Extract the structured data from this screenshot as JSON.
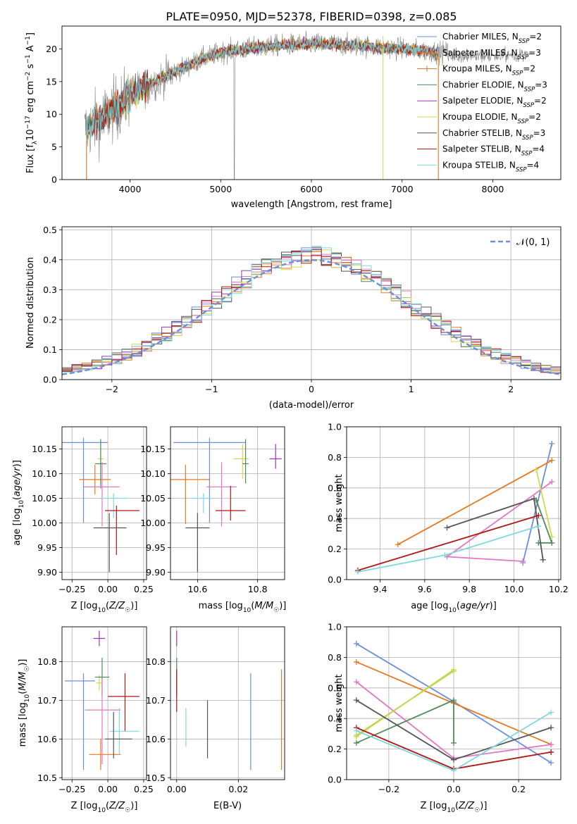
{
  "figure_title": "PLATE=0950, MJD=52378, FIBERID=0398, z=0.085",
  "colors": {
    "chabrier_miles": "#6b8fdc",
    "salpeter_miles": "#e8781e",
    "kroupa_miles": "#c97a2a",
    "chabrier_elodie": "#4f8a5a",
    "salpeter_elodie": "#9b36b8",
    "kroupa_elodie": "#d4d94a",
    "chabrier_stelib": "#555555",
    "salpeter_stelib": "#b31414",
    "kroupa_stelib": "#7fd8dc",
    "data_spectrum": "#808080",
    "pink": "#e377c2",
    "lime": "#bcd64f",
    "grid": "#b0b0b0"
  },
  "chart_data": [
    {
      "id": "spectrum",
      "type": "line",
      "title": "PLATE=0950, MJD=52378, FIBERID=0398, z=0.085",
      "xlabel": "wavelength [Angstrom, rest frame]",
      "ylabel": "Flux [f$_\\lambda$10$^{-17}$ erg cm$^{-2}$ s$^{-1}$ A$^{-1}$]",
      "xlim": [
        3250,
        8750
      ],
      "ylim": [
        0,
        23.5
      ],
      "xticks": [
        4000,
        5000,
        6000,
        7000,
        8000
      ],
      "yticks": [
        0,
        5,
        10,
        15,
        20
      ],
      "grid": false,
      "legend_position": "top-right",
      "legend": [
        {
          "label": "Chabrier MILES, N",
          "sub": "SSP",
          "tail": "=2"
        },
        {
          "label": "Salpeter MILES, N",
          "sub": "SSP",
          "tail": "=3"
        },
        {
          "label": "Kroupa MILES, N",
          "sub": "SSP",
          "tail": "=2"
        },
        {
          "label": "Chabrier ELODIE, N",
          "sub": "SSP",
          "tail": "=3"
        },
        {
          "label": "Salpeter ELODIE, N",
          "sub": "SSP",
          "tail": "=2"
        },
        {
          "label": "Kroupa ELODIE, N",
          "sub": "SSP",
          "tail": "=2"
        },
        {
          "label": "Chabrier STELIB, N",
          "sub": "SSP",
          "tail": "=3"
        },
        {
          "label": "Salpeter STELIB, N",
          "sub": "SSP",
          "tail": "=4"
        },
        {
          "label": "Kroupa STELIB, N",
          "sub": "SSP",
          "tail": "=4"
        }
      ],
      "continuum_anchor_points": [
        [
          3500,
          7.5
        ],
        [
          3700,
          9.5
        ],
        [
          3900,
          11.5
        ],
        [
          4000,
          13
        ],
        [
          4200,
          14.5
        ],
        [
          4500,
          16.5
        ],
        [
          4800,
          18.5
        ],
        [
          5000,
          19.5
        ],
        [
          5300,
          20
        ],
        [
          5600,
          20.5
        ],
        [
          6000,
          20.8
        ],
        [
          6500,
          20.5
        ],
        [
          7000,
          20
        ],
        [
          7400,
          19.5
        ]
      ],
      "model_end_wavelength": 7400,
      "data_end_wavelength": 8400
    },
    {
      "id": "residuals",
      "type": "line",
      "xlabel": "(data-model)/error",
      "ylabel": "Normed distribution",
      "xlim": [
        -2.5,
        2.5
      ],
      "ylim": [
        0,
        0.51
      ],
      "xticks": [
        -2,
        -1,
        0,
        1,
        2
      ],
      "yticks": [
        0.0,
        0.1,
        0.2,
        0.3,
        0.4,
        0.5
      ],
      "grid": true,
      "legend_position": "top-right",
      "reference_curve": {
        "label": "N(0,1)",
        "mean": 0,
        "sigma": 1,
        "style": "dashed"
      },
      "histogram_bin_width": 0.1
    },
    {
      "id": "age_vs_Z",
      "type": "scatter",
      "xlabel": "Z [log10(Z/Z☉)]",
      "ylabel": "age [log10(age/yr)]",
      "xlim": [
        -0.32,
        0.27
      ],
      "ylim": [
        9.885,
        10.195
      ],
      "xticks": [
        -0.25,
        0.0,
        0.25
      ],
      "yticks": [
        9.9,
        9.95,
        10.0,
        10.05,
        10.1,
        10.15
      ],
      "grid": true,
      "points": [
        {
          "color": "chabrier_miles",
          "x": -0.17,
          "xerr": [
            0.17,
            0.17
          ],
          "y": 10.163,
          "yerr": [
            0.163,
            0.01
          ]
        },
        {
          "color": "salpeter_miles",
          "x": -0.09,
          "xerr": [
            0.11,
            0.11
          ],
          "y": 10.088,
          "yerr": [
            0.03,
            0.03
          ]
        },
        {
          "color": "kroupa_elodie",
          "x": -0.05,
          "xerr": [
            0.02,
            0.02
          ],
          "y": 10.13,
          "yerr": [
            0.05,
            0.02
          ]
        },
        {
          "color": "chabrier_elodie",
          "x": -0.05,
          "xerr": [
            0.04,
            0.04
          ],
          "y": 10.12,
          "yerr": [
            0.05,
            0.05
          ]
        },
        {
          "color": "pink",
          "x": -0.04,
          "xerr": [
            0.13,
            0.12
          ],
          "y": 10.073,
          "yerr": [
            0.08,
            0.05
          ]
        },
        {
          "color": "kroupa_stelib",
          "x": 0.04,
          "xerr": [
            0.1,
            0.1
          ],
          "y": 10.05,
          "yerr": [
            0.04,
            0.01
          ]
        },
        {
          "color": "salpeter_stelib",
          "x": 0.06,
          "xerr": [
            0.08,
            0.16
          ],
          "y": 10.025,
          "yerr": [
            0.09,
            0.01
          ]
        },
        {
          "color": "chabrier_stelib",
          "x": 0.01,
          "xerr": [
            0.11,
            0.12
          ],
          "y": 9.99,
          "yerr": [
            0.09,
            0.03
          ]
        }
      ]
    },
    {
      "id": "age_vs_mass",
      "type": "scatter",
      "xlabel": "mass [log10(M/M☉)]",
      "ylabel": "",
      "xlim": [
        10.51,
        10.89
      ],
      "ylim": [
        9.885,
        10.195
      ],
      "xticks": [
        10.6,
        10.8
      ],
      "yticks": [
        9.9,
        9.95,
        10.0,
        10.05,
        10.1,
        10.15
      ],
      "grid": true,
      "points": [
        {
          "color": "chabrier_miles",
          "x": 10.64,
          "xerr": [
            0.12,
            0.12
          ],
          "y": 10.163,
          "yerr": [
            0.163,
            0.01
          ]
        },
        {
          "color": "salpeter_miles",
          "x": 10.56,
          "xerr": [
            0.08,
            0.08
          ],
          "y": 10.088,
          "yerr": [
            0.09,
            0.03
          ]
        },
        {
          "color": "kroupa_elodie",
          "x": 10.75,
          "xerr": [
            0.03,
            0.02
          ],
          "y": 10.13,
          "yerr": [
            0.04,
            0.03
          ]
        },
        {
          "color": "chabrier_elodie",
          "x": 10.76,
          "xerr": [
            0.01,
            0.01
          ],
          "y": 10.12,
          "yerr": [
            0.04,
            0.05
          ]
        },
        {
          "color": "salpeter_elodie",
          "x": 10.86,
          "xerr": [
            0.02,
            0.02
          ],
          "y": 10.13,
          "yerr": [
            0.02,
            0.03
          ]
        },
        {
          "color": "pink",
          "x": 10.68,
          "xerr": [
            0.05,
            0.05
          ],
          "y": 10.073,
          "yerr": [
            0.08,
            0.05
          ]
        },
        {
          "color": "kroupa_stelib",
          "x": 10.62,
          "xerr": [
            0.04,
            0.03
          ],
          "y": 10.05,
          "yerr": [
            0.03,
            0.01
          ]
        },
        {
          "color": "salpeter_stelib",
          "x": 10.71,
          "xerr": [
            0.05,
            0.05
          ],
          "y": 10.025,
          "yerr": [
            0.02,
            0.05
          ]
        },
        {
          "color": "chabrier_stelib",
          "x": 10.6,
          "xerr": [
            0.04,
            0.04
          ],
          "y": 9.99,
          "yerr": [
            0.09,
            0.03
          ]
        }
      ]
    },
    {
      "id": "massweight_vs_age",
      "type": "line",
      "xlabel": "age [log10(age/yr)]",
      "ylabel": "mass weight",
      "xlim": [
        9.25,
        10.21
      ],
      "ylim": [
        0,
        1.0
      ],
      "xticks": [
        9.4,
        9.6,
        9.8,
        10.0,
        10.2
      ],
      "yticks": [
        0.0,
        0.2,
        0.4,
        0.6,
        0.8,
        1.0
      ],
      "grid": true,
      "series": [
        {
          "color": "chabrier_miles",
          "x": [
            10.04,
            10.17
          ],
          "y": [
            0.11,
            0.89
          ]
        },
        {
          "color": "salpeter_miles",
          "x": [
            9.48,
            10.17
          ],
          "y": [
            0.23,
            0.78
          ]
        },
        {
          "color": "pink",
          "x": [
            10.04,
            9.7,
            10.17
          ],
          "y": [
            0.12,
            0.15,
            0.64
          ]
        },
        {
          "color": "kroupa_elodie",
          "x": [
            10.1,
            10.17
          ],
          "y": [
            0.72,
            0.28
          ]
        },
        {
          "color": "chabrier_elodie",
          "x": [
            10.1,
            10.17,
            10.11
          ],
          "y": [
            0.52,
            0.24,
            0.24
          ]
        },
        {
          "color": "chabrier_stelib",
          "x": [
            9.7,
            10.09,
            10.13
          ],
          "y": [
            0.34,
            0.53,
            0.13
          ]
        },
        {
          "color": "salpeter_stelib",
          "x": [
            9.3,
            10.11
          ],
          "y": [
            0.06,
            0.42
          ]
        },
        {
          "color": "kroupa_stelib",
          "x": [
            9.3,
            9.69,
            10.11
          ],
          "y": [
            0.05,
            0.16,
            0.35
          ]
        }
      ]
    },
    {
      "id": "mass_vs_Z",
      "type": "scatter",
      "xlabel": "Z [log10(Z/Z☉)]",
      "ylabel": "mass [log10(M/M☉)]",
      "xlim": [
        -0.32,
        0.27
      ],
      "ylim": [
        10.495,
        10.89
      ],
      "xticks": [
        -0.25,
        0.0,
        0.25
      ],
      "yticks": [
        10.5,
        10.6,
        10.7,
        10.8
      ],
      "grid": true,
      "points": [
        {
          "color": "chabrier_miles",
          "x": -0.17,
          "xerr": [
            0.13,
            0.08
          ],
          "y": 10.75,
          "yerr": [
            0.23,
            0.02
          ]
        },
        {
          "color": "salpeter_miles",
          "x": -0.05,
          "xerr": [
            0.08,
            0.14
          ],
          "y": 10.56,
          "yerr": [
            0.04,
            0.04
          ]
        },
        {
          "color": "salpeter_elodie",
          "x": -0.06,
          "xerr": [
            0.04,
            0.04
          ],
          "y": 10.86,
          "yerr": [
            0.02,
            0.02
          ]
        },
        {
          "color": "kroupa_elodie",
          "x": -0.06,
          "xerr": [
            0.02,
            0.02
          ],
          "y": 10.745,
          "yerr": [
            0.02,
            0.02
          ]
        },
        {
          "color": "chabrier_elodie",
          "x": -0.04,
          "xerr": [
            0.05,
            0.05
          ],
          "y": 10.76,
          "yerr": [
            0.05,
            0.05
          ]
        },
        {
          "color": "pink",
          "x": -0.04,
          "xerr": [
            0.12,
            0.13
          ],
          "y": 10.675,
          "yerr": [
            0.14,
            0.08
          ]
        },
        {
          "color": "salpeter_stelib",
          "x": 0.12,
          "xerr": [
            0.12,
            0.1
          ],
          "y": 10.71,
          "yerr": [
            0.09,
            0.06
          ]
        },
        {
          "color": "kroupa_stelib",
          "x": 0.08,
          "xerr": [
            0.07,
            0.14
          ],
          "y": 10.62,
          "yerr": [
            0.06,
            0.06
          ]
        },
        {
          "color": "chabrier_stelib",
          "x": 0.04,
          "xerr": [
            0.06,
            0.13
          ],
          "y": 10.6,
          "yerr": [
            0.05,
            0.07
          ]
        }
      ]
    },
    {
      "id": "mass_vs_EBV",
      "type": "scatter",
      "xlabel": "E(B-V)",
      "ylabel": "",
      "xlim": [
        -0.002,
        0.035
      ],
      "ylim": [
        10.495,
        10.89
      ],
      "xticks": [
        0.0,
        0.02
      ],
      "yticks": [
        10.5,
        10.6,
        10.7,
        10.8
      ],
      "grid": true,
      "points": [
        {
          "color": "salpeter_elodie",
          "x": 0.0,
          "y": 10.86,
          "yerr": [
            0.02,
            0.02
          ]
        },
        {
          "color": "chabrier_elodie",
          "x": 0.0,
          "y": 10.76,
          "yerr": [
            0.05,
            0.05
          ]
        },
        {
          "color": "salpeter_stelib",
          "x": 0.0,
          "y": 10.72,
          "yerr": [
            0.05,
            0.06
          ]
        },
        {
          "color": "kroupa_stelib",
          "x": 0.003,
          "y": 10.63,
          "yerr": [
            0.05,
            0.05
          ]
        },
        {
          "color": "chabrier_stelib",
          "x": 0.01,
          "y": 10.625,
          "yerr": [
            0.075,
            0.075
          ]
        },
        {
          "color": "chabrier_miles",
          "x": 0.024,
          "y": 10.645,
          "yerr": [
            0.125,
            0.125
          ]
        },
        {
          "color": "salpeter_miles",
          "x": 0.034,
          "y": 10.65,
          "yerr": [
            0.13,
            0.13
          ]
        }
      ]
    },
    {
      "id": "massweight_vs_Z",
      "type": "line",
      "xlabel": "Z [log10(Z/Z☉)]",
      "ylabel": "mass weight",
      "xlim": [
        -0.33,
        0.33
      ],
      "ylim": [
        0,
        1.0
      ],
      "xticks": [
        -0.2,
        0.0,
        0.2
      ],
      "yticks": [
        0.0,
        0.2,
        0.4,
        0.6,
        0.8,
        1.0
      ],
      "grid": true,
      "series": [
        {
          "color": "chabrier_miles",
          "x": [
            -0.3,
            0.0,
            0.3
          ],
          "y": [
            0.89,
            0.51,
            0.11
          ]
        },
        {
          "color": "salpeter_miles",
          "x": [
            -0.3,
            0.0,
            0.3
          ],
          "y": [
            0.77,
            0.5,
            0.23
          ]
        },
        {
          "color": "pink",
          "x": [
            -0.3,
            0.0,
            0.3
          ],
          "y": [
            0.64,
            0.14,
            0.23
          ]
        },
        {
          "color": "kroupa_elodie",
          "x": [
            -0.3,
            0.0
          ],
          "y": [
            0.28,
            0.72
          ]
        },
        {
          "color": "lime",
          "x": [
            -0.3,
            0.0
          ],
          "y": [
            0.29,
            0.71
          ]
        },
        {
          "color": "chabrier_elodie",
          "x": [
            -0.3,
            0.0,
            0.0
          ],
          "y": [
            0.24,
            0.52,
            0.24
          ]
        },
        {
          "color": "chabrier_stelib",
          "x": [
            -0.3,
            0.0,
            0.3
          ],
          "y": [
            0.52,
            0.13,
            0.34
          ]
        },
        {
          "color": "salpeter_stelib",
          "x": [
            -0.3,
            0.0,
            0.3
          ],
          "y": [
            0.34,
            0.07,
            0.18
          ]
        },
        {
          "color": "kroupa_stelib",
          "x": [
            -0.3,
            0.0,
            0.3
          ],
          "y": [
            0.32,
            0.06,
            0.44
          ]
        }
      ]
    }
  ]
}
